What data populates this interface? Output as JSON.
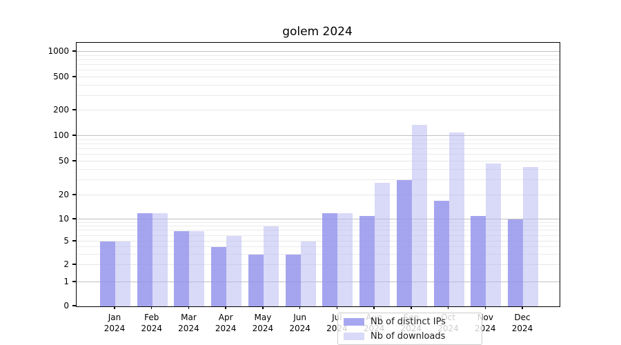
{
  "title": "golem 2024",
  "legend": {
    "items": [
      {
        "label": "Nb of distinct IPs",
        "color": "#a7a7f0"
      },
      {
        "label": "Nb of downloads",
        "color": "#d9d9f8"
      }
    ]
  },
  "chart_data": {
    "type": "bar",
    "title": "golem 2024",
    "categories": [
      "Jan",
      "Feb",
      "Mar",
      "Apr",
      "May",
      "Jun",
      "Jul",
      "Aug",
      "Sep",
      "Oct",
      "Nov",
      "Dec"
    ],
    "x_year_line": "2024",
    "series": [
      {
        "name": "Nb of distinct IPs",
        "color": "#a7a7f0",
        "fill": "rgba(145,145,236,0.82)",
        "values": [
          5,
          12,
          7,
          4,
          3,
          3,
          12,
          11,
          30,
          17,
          11,
          10
        ]
      },
      {
        "name": "Nb of downloads",
        "color": "#d9d9f8",
        "fill": "rgba(180,180,241,0.5)",
        "values": [
          5,
          12,
          7,
          6,
          8,
          5,
          12,
          28,
          135,
          110,
          47,
          43
        ]
      }
    ],
    "xlabel": "",
    "ylabel": "",
    "yscale": "symlog",
    "ylim": [
      0,
      1300
    ],
    "yticks": [
      0,
      1,
      2,
      5,
      10,
      20,
      50,
      100,
      200,
      500,
      1000
    ],
    "grid": true,
    "grid_major_color": "#c1c1c1",
    "grid_minor_color": "#ebebeb",
    "legend_position": "lower center"
  }
}
